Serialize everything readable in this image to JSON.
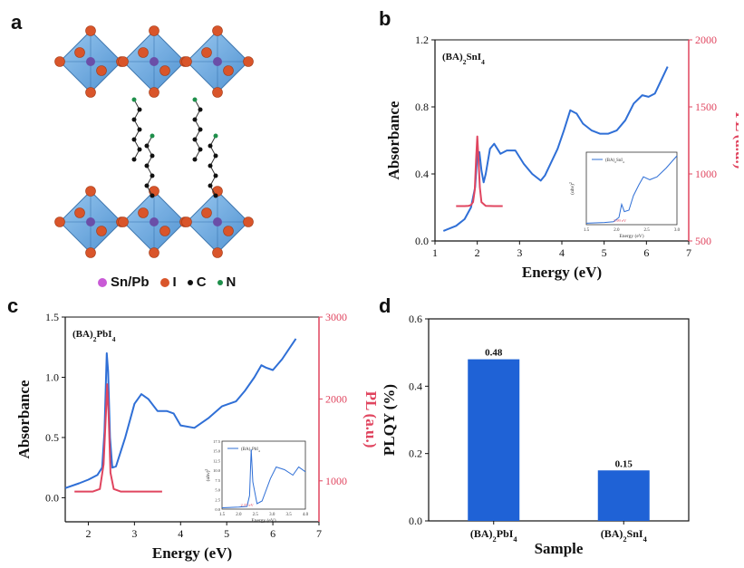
{
  "panels": {
    "a": "a",
    "b": "b",
    "c": "c",
    "d": "d"
  },
  "structure_legend": [
    {
      "label": "Sn/Pb",
      "color": "#c95ad6"
    },
    {
      "label": "I",
      "color": "#d9552a"
    },
    {
      "label": "C",
      "color": "#111111"
    },
    {
      "label": "N",
      "color": "#1e8f4a"
    }
  ],
  "chart_data": [
    {
      "panel": "b",
      "type": "line",
      "title": "(BA)₂SnI₄",
      "xlabel": "Energy (eV)",
      "ylabel": "Absorbance",
      "y2label": "PL (a.u.)",
      "xlim": [
        1,
        7
      ],
      "ylim": [
        0,
        1.2
      ],
      "y2lim": [
        500,
        2000
      ],
      "xticks": [
        1,
        2,
        3,
        4,
        5,
        6,
        7
      ],
      "yticks": [
        0.0,
        0.4,
        0.8,
        1.2
      ],
      "y2ticks": [
        500,
        1000,
        1500,
        2000
      ],
      "colors": {
        "absorbance": "#2f6fd6",
        "pl": "#e0455f",
        "axis2": "#e0455f"
      },
      "series": [
        {
          "role": "absorbance",
          "x": [
            1.2,
            1.5,
            1.7,
            1.85,
            1.95,
            2.0,
            2.05,
            2.1,
            2.15,
            2.2,
            2.3,
            2.4,
            2.55,
            2.7,
            2.9,
            3.1,
            3.3,
            3.5,
            3.6,
            3.75,
            3.9,
            4.05,
            4.2,
            4.35,
            4.5,
            4.7,
            4.9,
            5.1,
            5.3,
            5.5,
            5.7,
            5.9,
            6.05,
            6.2,
            6.35,
            6.5
          ],
          "y": [
            0.06,
            0.09,
            0.13,
            0.2,
            0.32,
            0.51,
            0.53,
            0.42,
            0.35,
            0.4,
            0.55,
            0.58,
            0.52,
            0.54,
            0.54,
            0.46,
            0.4,
            0.36,
            0.39,
            0.47,
            0.55,
            0.66,
            0.78,
            0.76,
            0.7,
            0.66,
            0.64,
            0.64,
            0.66,
            0.72,
            0.82,
            0.87,
            0.86,
            0.88,
            0.96,
            1.04
          ]
        },
        {
          "role": "pl",
          "x": [
            1.5,
            1.7,
            1.8,
            1.85,
            1.9,
            1.94,
            1.97,
            2.0,
            2.03,
            2.06,
            2.1,
            2.2,
            2.4,
            2.6
          ],
          "y": [
            760,
            760,
            762,
            768,
            790,
            880,
            1100,
            1280,
            1100,
            900,
            790,
            762,
            760,
            760
          ]
        }
      ],
      "inset": {
        "legend": "(BA)₂SnI₄",
        "ylabel": "(αhν)²",
        "xlabel": "Energy (eV)",
        "xticks": [
          "1.5",
          "2.0",
          "2.5",
          "3.0"
        ],
        "annotation": "1.99 eV"
      }
    },
    {
      "panel": "c",
      "type": "line",
      "title": "(BA)₂PbI₄",
      "xlabel": "Energy (eV)",
      "ylabel": "Absorbance",
      "y2label": "PL (a.u.)",
      "xlim": [
        1.5,
        7
      ],
      "ylim": [
        -0.2,
        1.5
      ],
      "y2lim": [
        500,
        3000
      ],
      "xticks": [
        2,
        3,
        4,
        5,
        6,
        7
      ],
      "yticks": [
        0.0,
        0.5,
        1.0,
        1.5
      ],
      "y2ticks": [
        1000,
        2000,
        3000
      ],
      "colors": {
        "absorbance": "#2f6fd6",
        "pl": "#e0455f",
        "axis2": "#e0455f"
      },
      "series": [
        {
          "role": "absorbance",
          "x": [
            1.5,
            1.8,
            2.0,
            2.2,
            2.3,
            2.35,
            2.4,
            2.43,
            2.47,
            2.52,
            2.6,
            2.8,
            3.0,
            3.15,
            3.3,
            3.5,
            3.7,
            3.85,
            4.0,
            4.3,
            4.6,
            4.9,
            5.2,
            5.4,
            5.6,
            5.75,
            5.85,
            6.0,
            6.2,
            6.5
          ],
          "y": [
            0.08,
            0.12,
            0.15,
            0.19,
            0.25,
            0.55,
            1.2,
            1.05,
            0.5,
            0.25,
            0.26,
            0.5,
            0.78,
            0.86,
            0.82,
            0.72,
            0.72,
            0.7,
            0.6,
            0.58,
            0.66,
            0.76,
            0.8,
            0.89,
            1.0,
            1.1,
            1.08,
            1.06,
            1.15,
            1.32
          ]
        },
        {
          "role": "pl",
          "x": [
            1.7,
            2.1,
            2.25,
            2.33,
            2.38,
            2.41,
            2.44,
            2.48,
            2.55,
            2.7,
            3.0,
            3.6
          ],
          "y": [
            870,
            870,
            900,
            1200,
            1800,
            2180,
            1800,
            1100,
            900,
            870,
            870,
            870
          ]
        }
      ],
      "inset": {
        "legend": "(BA)₂PbI₄",
        "ylabel": "(αhν)²",
        "xlabel": "Energy (eV)",
        "xticks": [
          "1.5",
          "2.0",
          "2.5",
          "3.0",
          "3.5",
          "4.0"
        ],
        "yticks": [
          "0.0",
          "2.5",
          "5.0",
          "7.5",
          "10.0",
          "12.5",
          "15.0",
          "17.5"
        ],
        "annotation": "2.37 eV"
      }
    },
    {
      "panel": "d",
      "type": "bar",
      "xlabel": "Sample",
      "ylabel": "PLQY (%)",
      "ylim": [
        0,
        0.6
      ],
      "yticks": [
        "0.0",
        "0.2",
        "0.4",
        "0.6"
      ],
      "categories": [
        "(BA)₂PbI₄",
        "(BA)₂SnI₄"
      ],
      "values": [
        0.48,
        0.15
      ],
      "value_labels": [
        "0.48",
        "0.15"
      ],
      "colors": {
        "bar": "#1f62d6"
      }
    }
  ]
}
